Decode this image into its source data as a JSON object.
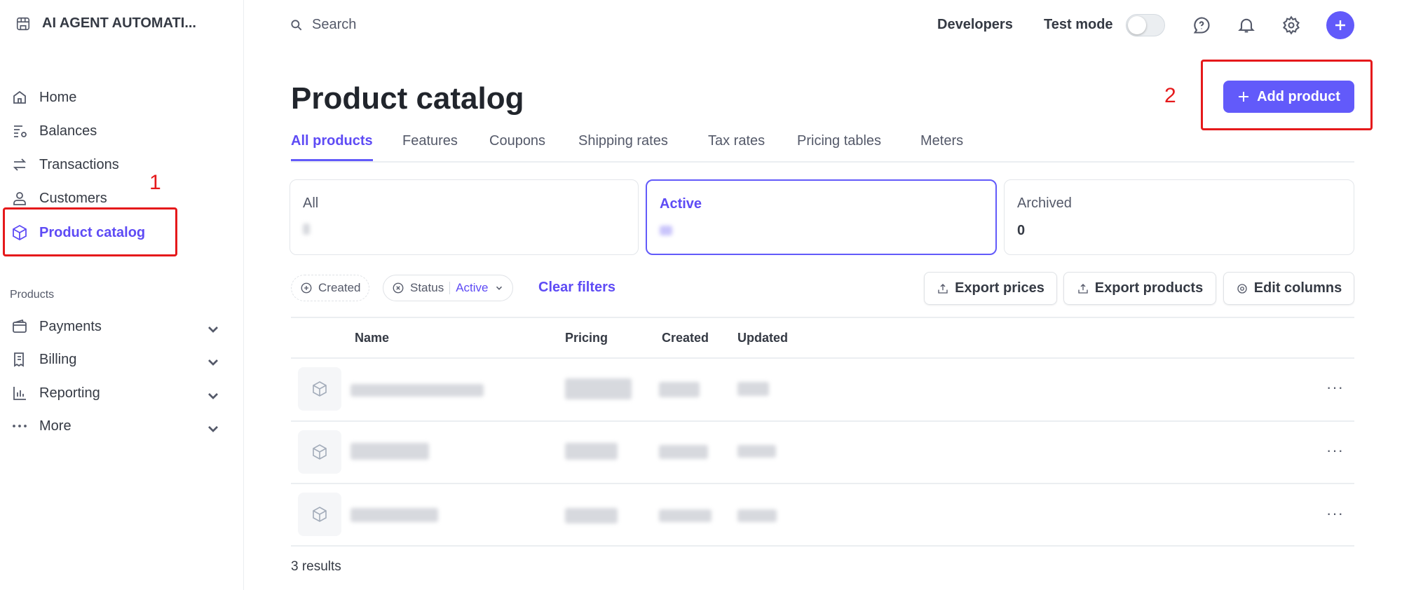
{
  "sidebar": {
    "account_name": "AI AGENT AUTOMATI...",
    "items": [
      {
        "label": "Home",
        "icon": "home-icon"
      },
      {
        "label": "Balances",
        "icon": "balances-icon"
      },
      {
        "label": "Transactions",
        "icon": "transactions-icon"
      },
      {
        "label": "Customers",
        "icon": "customers-icon"
      },
      {
        "label": "Product catalog",
        "icon": "box-icon",
        "active": true
      }
    ],
    "section_title": "Products",
    "section_items": [
      {
        "label": "Payments",
        "icon": "wallet-icon"
      },
      {
        "label": "Billing",
        "icon": "billing-icon"
      },
      {
        "label": "Reporting",
        "icon": "chart-icon"
      },
      {
        "label": "More",
        "icon": "more-icon"
      }
    ]
  },
  "topbar": {
    "search_placeholder": "Search",
    "developers": "Developers",
    "test_mode": "Test mode",
    "test_mode_on": false
  },
  "annotations": {
    "one": "1",
    "two": "2",
    "color": "#e5191b"
  },
  "page": {
    "title": "Product catalog",
    "add_product": "Add product",
    "tabs": [
      "All products",
      "Features",
      "Coupons",
      "Shipping rates",
      "Tax rates",
      "Pricing tables",
      "Meters"
    ],
    "cards": [
      {
        "label": "All",
        "value": ""
      },
      {
        "label": "Active",
        "value": ""
      },
      {
        "label": "Archived",
        "value": "0"
      }
    ],
    "filters": {
      "created": "Created",
      "status": "Status",
      "status_value": "Active",
      "clear": "Clear filters"
    },
    "actions": {
      "export_prices": "Export prices",
      "export_products": "Export products",
      "edit_columns": "Edit columns"
    },
    "columns": [
      "Name",
      "Pricing",
      "Created",
      "Updated"
    ],
    "results": "3 results"
  },
  "colors": {
    "accent": "#625afa",
    "text": "#353a44"
  }
}
